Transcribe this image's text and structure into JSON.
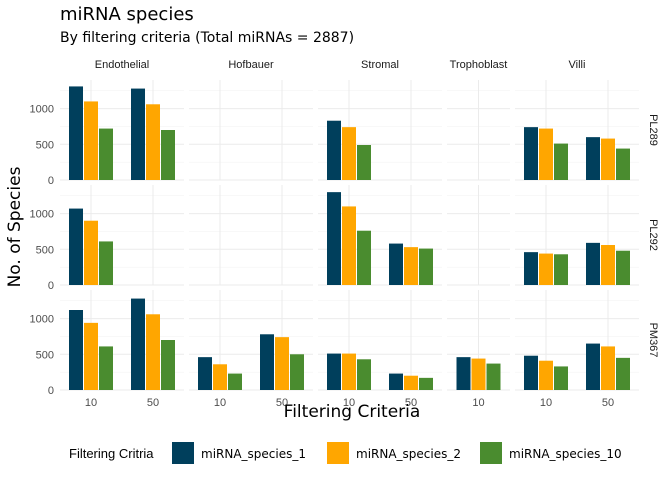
{
  "chart_data": {
    "type": "bar",
    "title": "miRNA species",
    "subtitle": "By filtering criteria (Total miRNAs = 2887)",
    "xlabel": "Filtering Criteria",
    "ylabel": "No. of Species",
    "ylim": [
      0,
      1400
    ],
    "yticks": [
      0,
      500,
      1000
    ],
    "x_categories": [
      "10",
      "50"
    ],
    "facet_cols": [
      "Endothelial",
      "Hofbauer",
      "Stromal",
      "Trophoblast",
      "Villi"
    ],
    "facet_rows": [
      "PL289",
      "PL292",
      "PM367"
    ],
    "legend": {
      "title": "Filtering Critria",
      "position": "bottom",
      "entries": [
        "miRNA_species_1",
        "miRNA_species_2",
        "miRNA_species_10"
      ]
    },
    "colors": {
      "miRNA_species_1": "#003f5c",
      "miRNA_species_2": "#ffa600",
      "miRNA_species_10": "#4a8c2f"
    },
    "grid": true,
    "panels": [
      {
        "row": "PL289",
        "col": "Endothelial",
        "bars": {
          "10": [
            1310,
            1100,
            720
          ],
          "50": [
            1280,
            1060,
            700
          ]
        }
      },
      {
        "row": "PL289",
        "col": "Hofbauer",
        "bars": {}
      },
      {
        "row": "PL289",
        "col": "Stromal",
        "bars": {
          "10": [
            830,
            740,
            490
          ]
        }
      },
      {
        "row": "PL289",
        "col": "Trophoblast",
        "bars": {}
      },
      {
        "row": "PL289",
        "col": "Villi",
        "bars": {
          "10": [
            740,
            720,
            510
          ],
          "50": [
            600,
            580,
            440
          ]
        }
      },
      {
        "row": "PL292",
        "col": "Endothelial",
        "bars": {
          "10": [
            1070,
            900,
            610
          ]
        }
      },
      {
        "row": "PL292",
        "col": "Hofbauer",
        "bars": {}
      },
      {
        "row": "PL292",
        "col": "Stromal",
        "bars": {
          "10": [
            1300,
            1100,
            760
          ],
          "50": [
            580,
            530,
            510
          ]
        }
      },
      {
        "row": "PL292",
        "col": "Trophoblast",
        "bars": {}
      },
      {
        "row": "PL292",
        "col": "Villi",
        "bars": {
          "10": [
            460,
            440,
            430
          ],
          "50": [
            590,
            560,
            480
          ]
        }
      },
      {
        "row": "PM367",
        "col": "Endothelial",
        "bars": {
          "10": [
            1120,
            940,
            610
          ],
          "50": [
            1280,
            1060,
            700
          ]
        }
      },
      {
        "row": "PM367",
        "col": "Hofbauer",
        "bars": {
          "10": [
            460,
            360,
            230
          ],
          "50": [
            780,
            740,
            500
          ]
        }
      },
      {
        "row": "PM367",
        "col": "Stromal",
        "bars": {
          "10": [
            510,
            510,
            430
          ],
          "50": [
            230,
            200,
            170
          ]
        }
      },
      {
        "row": "PM367",
        "col": "Trophoblast",
        "bars": {
          "10": [
            460,
            440,
            370
          ]
        }
      },
      {
        "row": "PM367",
        "col": "Villi",
        "bars": {
          "10": [
            480,
            410,
            330
          ],
          "50": [
            650,
            610,
            450
          ]
        }
      }
    ]
  }
}
